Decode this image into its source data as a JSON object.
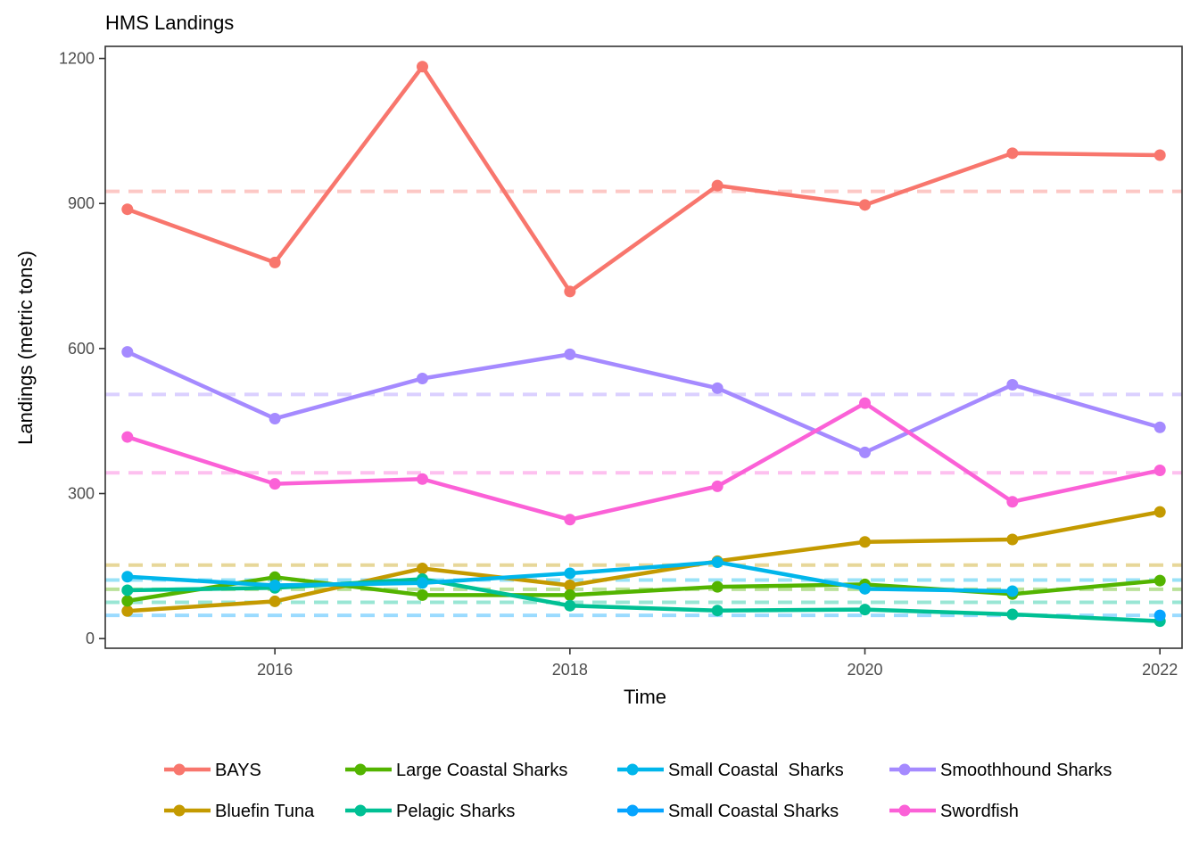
{
  "chart_data": {
    "type": "line",
    "title": "HMS Landings",
    "xlabel": "Time",
    "ylabel": "Landings (metric tons)",
    "xlim": [
      2014.85,
      2022.15
    ],
    "ylim": [
      -20,
      1225
    ],
    "x_ticks": [
      2016,
      2018,
      2020,
      2022
    ],
    "y_ticks": [
      0,
      300,
      600,
      900,
      1200
    ],
    "grid": false,
    "legend_position": "bottom",
    "series": [
      {
        "name": "BAYS",
        "color": "#F8766D",
        "x": [
          2015,
          2016,
          2017,
          2018,
          2019,
          2020,
          2021,
          2022
        ],
        "values": [
          888,
          778,
          1183,
          718,
          937,
          897,
          1004,
          1000
        ],
        "mean": 925
      },
      {
        "name": "Bluefin Tuna",
        "color": "#C49A00",
        "x": [
          2015,
          2016,
          2017,
          2018,
          2019,
          2020,
          2021,
          2022
        ],
        "values": [
          57,
          77,
          145,
          110,
          160,
          200,
          205,
          262
        ],
        "mean": 152
      },
      {
        "name": "Large Coastal Sharks",
        "color": "#53B400",
        "x": [
          2015,
          2016,
          2017,
          2018,
          2019,
          2020,
          2021,
          2022
        ],
        "values": [
          78,
          127,
          90,
          90,
          107,
          112,
          92,
          120
        ],
        "mean": 102
      },
      {
        "name": "Pelagic Sharks",
        "color": "#00C094",
        "x": [
          2015,
          2016,
          2017,
          2018,
          2019,
          2020,
          2021,
          2022
        ],
        "values": [
          100,
          105,
          123,
          68,
          58,
          60,
          50,
          36
        ],
        "mean": 75
      },
      {
        "name": "Small Coastal  Sharks",
        "color": "#00B6EB",
        "x": [
          2015,
          2016,
          2017,
          2018,
          2019,
          2020,
          2021
        ],
        "values": [
          128,
          110,
          115,
          135,
          158,
          103,
          98
        ],
        "mean": 121
      },
      {
        "name": "Small Coastal Sharks",
        "color": "#06A4FF",
        "x": [
          2022
        ],
        "values": [
          48
        ],
        "mean": 48
      },
      {
        "name": "Smoothhound Sharks",
        "color": "#A58AFF",
        "x": [
          2015,
          2016,
          2017,
          2018,
          2019,
          2020,
          2021,
          2022
        ],
        "values": [
          593,
          455,
          538,
          588,
          518,
          385,
          525,
          437
        ],
        "mean": 505
      },
      {
        "name": "Swordfish",
        "color": "#FB61D7",
        "x": [
          2015,
          2016,
          2017,
          2018,
          2019,
          2020,
          2021,
          2022
        ],
        "values": [
          417,
          320,
          330,
          246,
          315,
          487,
          283,
          348
        ],
        "mean": 343
      }
    ]
  }
}
